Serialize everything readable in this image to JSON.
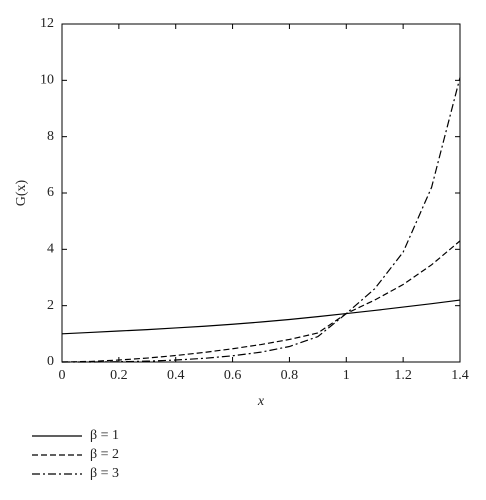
{
  "chart_data": {
    "type": "line",
    "x_label": "x",
    "y_label": "G(x)",
    "x": [
      0,
      0.1,
      0.2,
      0.3,
      0.4,
      0.5,
      0.6,
      0.7,
      0.8,
      0.9,
      1.0,
      1.1,
      1.2,
      1.3,
      1.4
    ],
    "series": [
      {
        "name": "β = 1",
        "color": "#000000",
        "dash": "solid",
        "values": [
          1.0,
          1.05,
          1.1,
          1.15,
          1.21,
          1.27,
          1.34,
          1.42,
          1.51,
          1.61,
          1.72,
          1.83,
          1.95,
          2.07,
          2.2
        ]
      },
      {
        "name": "β = 2",
        "color": "#000000",
        "dash": "dashed",
        "values": [
          0,
          0.02,
          0.07,
          0.14,
          0.23,
          0.34,
          0.47,
          0.62,
          0.8,
          1.03,
          1.72,
          2.2,
          2.75,
          3.45,
          4.3
        ]
      },
      {
        "name": "β = 3",
        "color": "#000000",
        "dash": "dashdot",
        "values": [
          0,
          0.0,
          0.01,
          0.03,
          0.07,
          0.13,
          0.22,
          0.35,
          0.55,
          0.9,
          1.72,
          2.6,
          3.9,
          6.2,
          10.1
        ]
      }
    ],
    "xlim": [
      0,
      1.4
    ],
    "xticks": [
      0,
      0.2,
      0.4,
      0.6,
      0.8,
      1,
      1.2,
      1.4
    ],
    "ylim": [
      0,
      12
    ],
    "yticks": [
      0,
      2,
      4,
      6,
      8,
      10,
      12
    ],
    "legend": "below-left"
  }
}
